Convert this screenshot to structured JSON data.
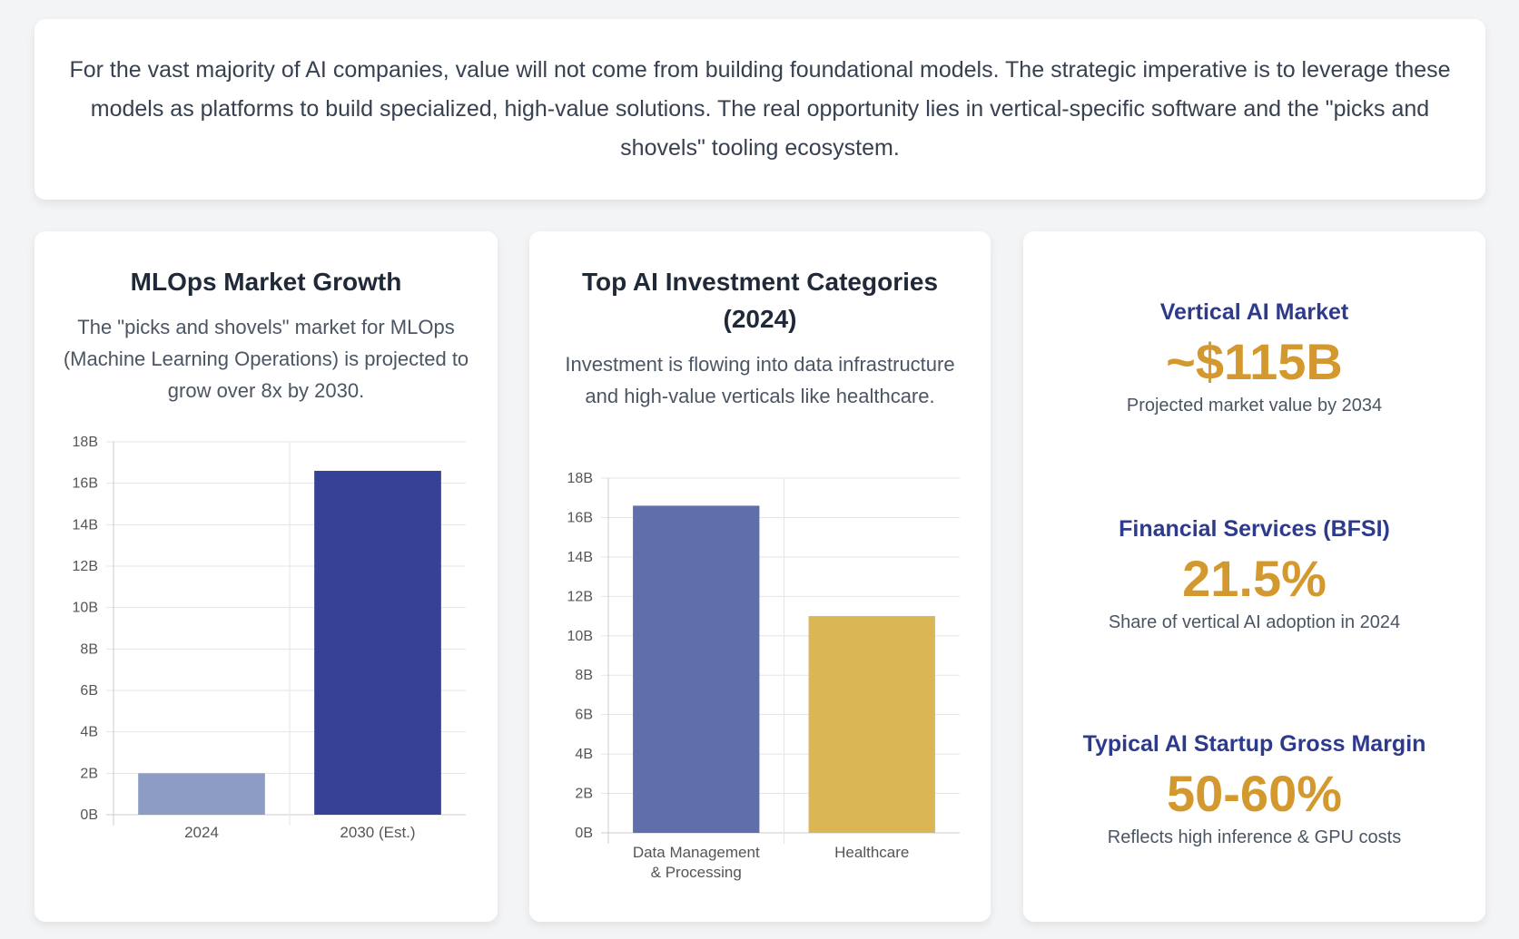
{
  "intro": {
    "text": "For the vast majority of AI companies, value will not come from building foundational models. The strategic imperative is to leverage these models as platforms to build specialized, high-value solutions. The real opportunity lies in vertical-specific software and the \"picks and shovels\" tooling ecosystem."
  },
  "mlops_card": {
    "title": "MLOps Market Growth",
    "subtitle": "The \"picks and shovels\" market for MLOps (Machine Learning Operations) is projected to grow over 8x by 2030."
  },
  "investment_card": {
    "title": "Top AI Investment Categories (2024)",
    "subtitle": "Investment is flowing into data infrastructure and high-value verticals like healthcare."
  },
  "stats": [
    {
      "title": "Vertical AI Market",
      "value": "~$115B",
      "caption": "Projected market value by 2034"
    },
    {
      "title": "Financial Services (BFSI)",
      "value": "21.5%",
      "caption": "Share of vertical AI adoption in 2024"
    },
    {
      "title": "Typical AI Startup Gross Margin",
      "value": "50-60%",
      "caption": "Reflects high inference & GPU costs"
    }
  ],
  "chart_data": [
    {
      "type": "bar",
      "categories": [
        "2024",
        "2030 (Est.)"
      ],
      "values": [
        2.0,
        16.6
      ],
      "colors": [
        "#8c9cc4",
        "#364296"
      ],
      "ylim": [
        0,
        18
      ],
      "yticks": [
        "0B",
        "2B",
        "4B",
        "6B",
        "8B",
        "10B",
        "12B",
        "14B",
        "16B",
        "18B"
      ],
      "grid": true
    },
    {
      "type": "bar",
      "categories": [
        [
          "Data Management",
          "& Processing"
        ],
        [
          "Healthcare"
        ]
      ],
      "values": [
        16.6,
        11.0
      ],
      "colors": [
        "#5f6fab",
        "#dbb655"
      ],
      "ylim": [
        0,
        18
      ],
      "yticks": [
        "0B",
        "2B",
        "4B",
        "6B",
        "8B",
        "10B",
        "12B",
        "14B",
        "16B",
        "18B"
      ],
      "grid": true
    }
  ]
}
